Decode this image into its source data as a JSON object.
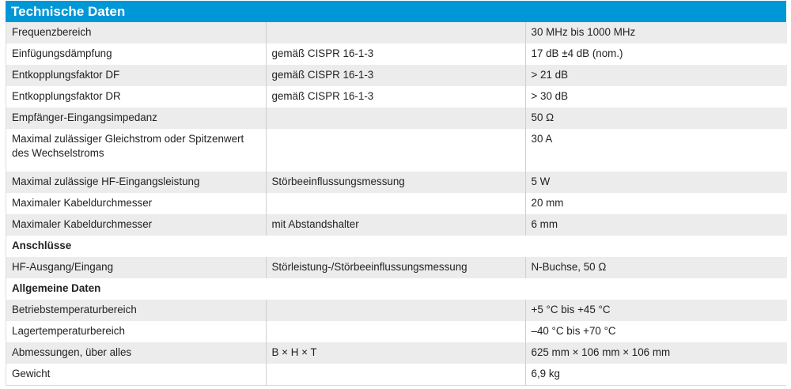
{
  "title": "Technische Daten",
  "rows": [
    {
      "type": "row",
      "shade": true,
      "label": "Frequenzbereich",
      "condition": "",
      "value": "30 MHz bis 1000 MHz"
    },
    {
      "type": "row",
      "shade": false,
      "label": "Einfügungsdämpfung",
      "condition": "gemäß CISPR 16-1-3",
      "value": "17 dB ±4 dB (nom.)"
    },
    {
      "type": "row",
      "shade": true,
      "label": "Entkopplungsfaktor DF",
      "condition": "gemäß CISPR 16-1-3",
      "value": "> 21 dB"
    },
    {
      "type": "row",
      "shade": false,
      "label": "Entkopplungsfaktor DR",
      "condition": "gemäß CISPR 16-1-3",
      "value": "> 30 dB"
    },
    {
      "type": "row",
      "shade": true,
      "label": "Empfänger-Eingangsimpedanz",
      "condition": "",
      "value": "50 Ω"
    },
    {
      "type": "row",
      "shade": false,
      "tall": true,
      "label": "Maximal zulässiger Gleichstrom oder Spitzenwert des Wechselstroms",
      "condition": "",
      "value": "30 A"
    },
    {
      "type": "row",
      "shade": true,
      "label": "Maximal zulässige HF-Eingangsleistung",
      "condition": "Störbeeinflussungsmessung",
      "value": "5 W"
    },
    {
      "type": "row",
      "shade": false,
      "label": "Maximaler Kabeldurchmesser",
      "condition": "",
      "value": "20 mm"
    },
    {
      "type": "row",
      "shade": true,
      "label": "Maximaler Kabeldurchmesser",
      "condition": "mit Abstandshalter",
      "value": "6 mm"
    },
    {
      "type": "section",
      "label": "Anschlüsse"
    },
    {
      "type": "row",
      "shade": true,
      "label": "HF-Ausgang/Eingang",
      "condition": "Störleistung-/Störbeeinflussungsmessung",
      "value": "N-Buchse, 50 Ω"
    },
    {
      "type": "section",
      "label": "Allgemeine Daten"
    },
    {
      "type": "row",
      "shade": true,
      "label": "Betriebstemperaturbereich",
      "condition": "",
      "value": "+5 °C bis +45 °C"
    },
    {
      "type": "row",
      "shade": false,
      "label": "Lagertemperaturbereich",
      "condition": "",
      "value": "–40 °C bis +70 °C"
    },
    {
      "type": "row",
      "shade": true,
      "label": "Abmessungen, über alles",
      "condition": "B × H × T",
      "value": "625 mm × 106 mm × 106 mm"
    },
    {
      "type": "row",
      "shade": false,
      "label": "Gewicht",
      "condition": "",
      "value": "6,9 kg"
    }
  ]
}
